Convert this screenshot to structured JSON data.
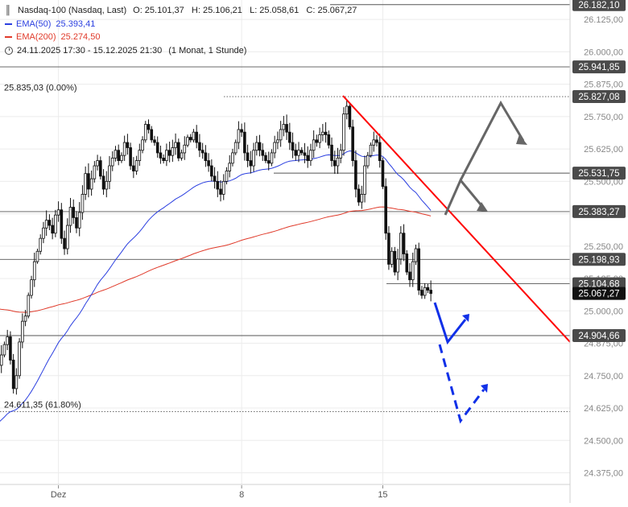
{
  "legend": {
    "instrument": "Nasdaq-100 (Nasdaq, Last)",
    "ohlc": "O: 25.101,37   H: 25.106,21   L: 25.058,61   C: 25.067,27",
    "ema50_label": "EMA(50)",
    "ema50_value": "25.393,41",
    "ema200_label": "EMA(200)",
    "ema200_value": "25.274,50",
    "range": "24.11.2025 17:30 - 15.12.2025 21:30",
    "interval": "(1 Monat, 1 Stunde)"
  },
  "colors": {
    "ema50": "#2b3fe0",
    "ema200": "#e03a2a",
    "trendline": "#ff0000",
    "arrow_grey": "#666666",
    "arrow_blue": "#1030e8",
    "label_bg": "#4a4a4a",
    "label_last_bg": "#111111"
  },
  "chart_data": {
    "type": "candlestick",
    "ylim": [
      24330,
      26200
    ],
    "y_ticks": [
      "26.125,00",
      "26.000,00",
      "25.875,00",
      "25.750,00",
      "25.625,00",
      "25.500,00",
      "25.375,00",
      "25.250,00",
      "25.125,00",
      "25.000,00",
      "24.875,00",
      "24.750,00",
      "24.625,00",
      "24.500,00",
      "24.375,00"
    ],
    "x_ticks": [
      {
        "label": "Dez",
        "bar": 20
      },
      {
        "label": "8",
        "bar": 81
      },
      {
        "label": "15",
        "bar": 128
      }
    ],
    "levels": [
      {
        "value": 26182.1,
        "label": "26.182,10",
        "style": "solid"
      },
      {
        "value": 25941.85,
        "label": "25.941,85",
        "style": "solid"
      },
      {
        "value": 25827.08,
        "label": "25.827,08",
        "style": "dotted"
      },
      {
        "value": 25531.75,
        "label": "25.531,75",
        "style": "solid"
      },
      {
        "value": 25383.27,
        "label": "25.383,27",
        "style": "solid"
      },
      {
        "value": 25198.93,
        "label": "25.198,93",
        "style": "solid"
      },
      {
        "value": 25104.68,
        "label": "25.104,68",
        "style": "solid"
      },
      {
        "value": 24904.66,
        "label": "24.904,66",
        "style": "solid"
      },
      {
        "value": 24611.35,
        "label": "",
        "style": "dotted"
      }
    ],
    "last_price": {
      "value": 25067.27,
      "label": "25.067,27"
    },
    "annotations": [
      {
        "text": "25.835,03 (0.00%)",
        "value": 25835.03
      },
      {
        "text": "24.611,35 (61.80%)",
        "value": 24611.35
      }
    ],
    "closes": [
      24790,
      24830,
      24870,
      24900,
      24810,
      24700,
      24750,
      24880,
      24960,
      24980,
      25060,
      25120,
      25190,
      25230,
      25280,
      25320,
      25350,
      25330,
      25300,
      25370,
      25390,
      25280,
      25240,
      25330,
      25400,
      25360,
      25320,
      25380,
      25450,
      25530,
      25470,
      25510,
      25560,
      25580,
      25520,
      25470,
      25500,
      25560,
      25590,
      25620,
      25580,
      25600,
      25650,
      25630,
      25560,
      25540,
      25580,
      25620,
      25660,
      25720,
      25700,
      25660,
      25650,
      25610,
      25590,
      25580,
      25620,
      25600,
      25630,
      25650,
      25590,
      25610,
      25640,
      25670,
      25660,
      25690,
      25650,
      25620,
      25610,
      25580,
      25560,
      25520,
      25500,
      25470,
      25450,
      25500,
      25540,
      25570,
      25610,
      25650,
      25700,
      25690,
      25610,
      25580,
      25560,
      25620,
      25650,
      25620,
      25600,
      25580,
      25570,
      25610,
      25650,
      25660,
      25700,
      25720,
      25690,
      25650,
      25620,
      25600,
      25620,
      25610,
      25600,
      25580,
      25620,
      25660,
      25650,
      25680,
      25690,
      25680,
      25640,
      25580,
      25560,
      25590,
      25620,
      25760,
      25790,
      25710,
      25580,
      25470,
      25420,
      25450,
      25560,
      25600,
      25640,
      25660,
      25650,
      25580,
      25480,
      25300,
      25180,
      25230,
      25150,
      25200,
      25300,
      25220,
      25150,
      25120,
      25190,
      25240,
      25080,
      25060,
      25090,
      25080,
      25067
    ]
  }
}
